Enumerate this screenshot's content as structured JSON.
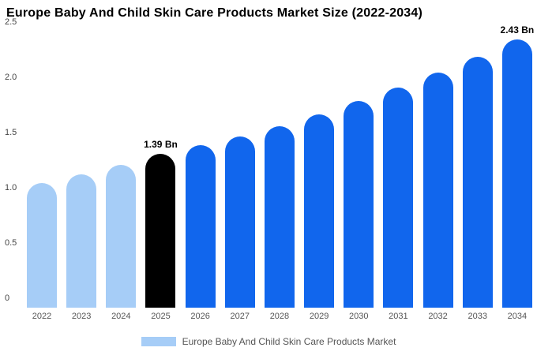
{
  "title": "Europe Baby And Child Skin Care Products Market Size (2022-2034)",
  "legend": {
    "label": "Europe Baby And Child Skin Care Products Market",
    "swatch_color": "#a6cdf7"
  },
  "colors": {
    "historical": "#a6cdf7",
    "highlight": "#000000",
    "forecast": "#1166ed",
    "background": "#ffffff"
  },
  "chart_data": {
    "type": "bar",
    "title": "Europe Baby And Child Skin Care Products Market Size (2022-2034)",
    "xlabel": "",
    "ylabel": "",
    "ylim": [
      0,
      2.5
    ],
    "grid": false,
    "legend_position": "bottom",
    "categories": [
      "2022",
      "2023",
      "2024",
      "2025",
      "2026",
      "2027",
      "2028",
      "2029",
      "2030",
      "2031",
      "2032",
      "2033",
      "2034"
    ],
    "values": [
      1.13,
      1.21,
      1.29,
      1.39,
      1.47,
      1.55,
      1.64,
      1.75,
      1.87,
      1.99,
      2.13,
      2.27,
      2.43
    ],
    "bar_colors": [
      "#a6cdf7",
      "#a6cdf7",
      "#a6cdf7",
      "#000000",
      "#1166ed",
      "#1166ed",
      "#1166ed",
      "#1166ed",
      "#1166ed",
      "#1166ed",
      "#1166ed",
      "#1166ed",
      "#1166ed"
    ],
    "data_labels": {
      "3": "1.39 Bn",
      "12": "2.43 Bn"
    },
    "yticks": [
      {
        "label": "0",
        "value": 0
      },
      {
        "label": "0.5",
        "value": 0.5
      },
      {
        "label": "1.0",
        "value": 1.0
      },
      {
        "label": "1.5",
        "value": 1.5
      },
      {
        "label": "2.0",
        "value": 2.0
      },
      {
        "label": "2.5",
        "value": 2.5
      }
    ]
  }
}
